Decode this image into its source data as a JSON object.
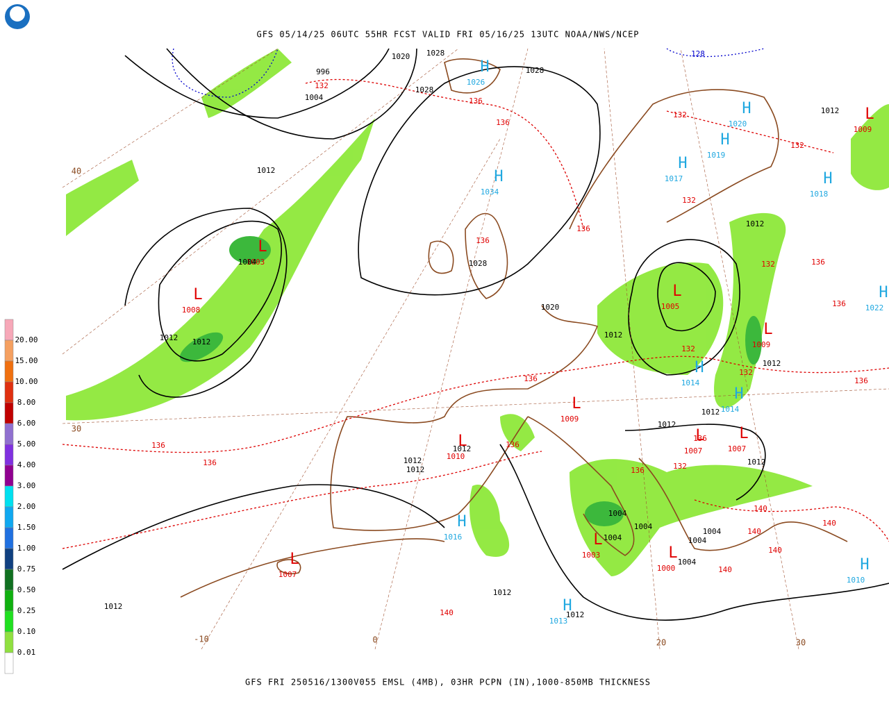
{
  "header": {
    "title": "GFS 05/14/25 06UTC 55HR FCST VALID FRI 05/16/25 13UTC NOAA/NWS/NCEP"
  },
  "footer": {
    "caption": "GFS FRI 250516/1300V055 EMSL (4MB), 03HR PCPN (IN),1000-850MB THICKNESS"
  },
  "legend": {
    "items": [
      {
        "label": "20.00",
        "color": "#f7a8b8"
      },
      {
        "label": "15.00",
        "color": "#f5a060"
      },
      {
        "label": "10.00",
        "color": "#f07010"
      },
      {
        "label": "8.00",
        "color": "#e03010"
      },
      {
        "label": "6.00",
        "color": "#c00000"
      },
      {
        "label": "5.00",
        "color": "#9070d0"
      },
      {
        "label": "4.00",
        "color": "#8030e0"
      },
      {
        "label": "3.00",
        "color": "#900090"
      },
      {
        "label": "2.00",
        "color": "#00e0f0"
      },
      {
        "label": "1.50",
        "color": "#10a8f0"
      },
      {
        "label": "1.00",
        "color": "#2070e0"
      },
      {
        "label": "0.75",
        "color": "#104080"
      },
      {
        "label": "0.50",
        "color": "#107020"
      },
      {
        "label": "0.25",
        "color": "#10b010"
      },
      {
        "label": "0.10",
        "color": "#20e020"
      },
      {
        "label": "0.01",
        "color": "#90e040"
      }
    ]
  },
  "map": {
    "highs": [
      {
        "symbol": "H",
        "value": "1026"
      },
      {
        "symbol": "H",
        "value": "1034"
      },
      {
        "symbol": "H",
        "value": "1020"
      },
      {
        "symbol": "H",
        "value": "1019"
      },
      {
        "symbol": "H",
        "value": "1017"
      },
      {
        "symbol": "H",
        "value": "1018"
      },
      {
        "symbol": "H",
        "value": "1014"
      },
      {
        "symbol": "H",
        "value": "1014"
      },
      {
        "symbol": "H",
        "value": "1016"
      },
      {
        "symbol": "H",
        "value": "1013"
      },
      {
        "symbol": "H",
        "value": "1010"
      },
      {
        "symbol": "H",
        "value": "1022"
      }
    ],
    "lows": [
      {
        "symbol": "L",
        "value": "1008"
      },
      {
        "symbol": "L",
        "value": "1003"
      },
      {
        "symbol": "L",
        "value": "1005"
      },
      {
        "symbol": "L",
        "value": "1009"
      },
      {
        "symbol": "L",
        "value": "1009"
      },
      {
        "symbol": "L",
        "value": "1010"
      },
      {
        "symbol": "L",
        "value": "1007"
      },
      {
        "symbol": "L",
        "value": "1007"
      },
      {
        "symbol": "L",
        "value": "1007"
      },
      {
        "symbol": "L",
        "value": "1000"
      },
      {
        "symbol": "L",
        "value": "1003"
      },
      {
        "symbol": "L",
        "value": "1009"
      }
    ],
    "isobar_labels": [
      "1020",
      "1028",
      "996",
      "1004",
      "1028",
      "1028",
      "1012",
      "1004",
      "1012",
      "1012",
      "1028",
      "1020",
      "1012",
      "1012",
      "1012",
      "1012",
      "1012",
      "1012",
      "1012",
      "1012",
      "1012",
      "1012",
      "1004",
      "1004",
      "1004",
      "1004",
      "1004",
      "1004",
      "1012",
      "1012",
      "1012",
      "128"
    ],
    "thickness_labels": [
      "132",
      "136",
      "136",
      "132",
      "132",
      "132",
      "136",
      "136",
      "132",
      "136",
      "136",
      "132",
      "132",
      "136",
      "136",
      "136",
      "136",
      "136",
      "136",
      "136",
      "132",
      "140",
      "140",
      "140",
      "140",
      "140",
      "140"
    ],
    "grid_labels": [
      "40",
      "30",
      "-10",
      "0",
      "20",
      "30"
    ]
  }
}
